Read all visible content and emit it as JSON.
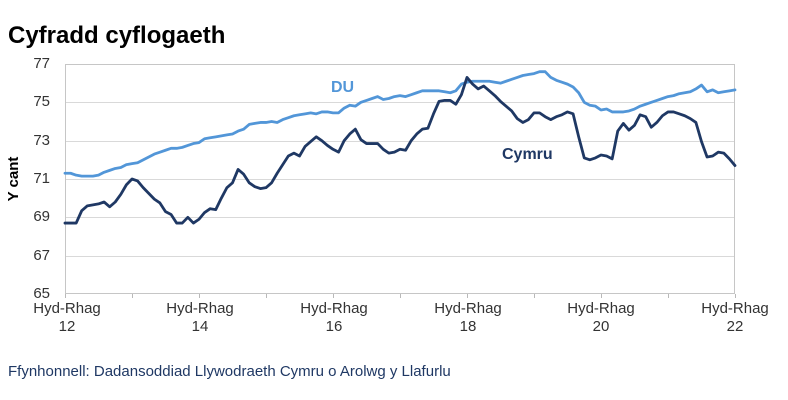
{
  "title": "Cyfradd cyflogaeth",
  "source": "Ffynhonnell: Dadansoddiad Llywodraeth Cymru o Arolwg y Llafurlu",
  "y_axis": {
    "title": "Y cant",
    "ticks": [
      "77",
      "75",
      "73",
      "71",
      "69",
      "67",
      "65"
    ]
  },
  "x_axis": {
    "labels": [
      {
        "line1": "Hyd-Rhag",
        "line2": "12"
      },
      {
        "line1": "Hyd-Rhag",
        "line2": "14"
      },
      {
        "line1": "Hyd-Rhag",
        "line2": "16"
      },
      {
        "line1": "Hyd-Rhag",
        "line2": "18"
      },
      {
        "line1": "Hyd-Rhag",
        "line2": "20"
      },
      {
        "line1": "Hyd-Rhag",
        "line2": "22"
      }
    ],
    "minor_tick_count": 11
  },
  "chart_data": {
    "type": "line",
    "title": "Cyfradd cyflogaeth",
    "ylabel": "Y cant",
    "ylim": [
      65,
      77
    ],
    "y_tick_step": 2,
    "grid": "horizontal",
    "x_description": "Rolling 3-month periods, monthly from Oct-Dec 2012 (Hyd-Rhag 12) to Oct-Dec 2022 (Hyd-Rhag 22), 121 points",
    "x_tick_labels": [
      "Hyd-Rhag 12",
      "Hyd-Rhag 14",
      "Hyd-Rhag 16",
      "Hyd-Rhag 18",
      "Hyd-Rhag 20",
      "Hyd-Rhag 22"
    ],
    "legend_position": "inline-labels",
    "series": [
      {
        "name": "DU",
        "color": "#5296d8",
        "values": [
          71.3,
          71.3,
          71.2,
          71.15,
          71.15,
          71.15,
          71.2,
          71.35,
          71.45,
          71.55,
          71.6,
          71.75,
          71.8,
          71.85,
          72.0,
          72.15,
          72.3,
          72.4,
          72.5,
          72.6,
          72.6,
          72.65,
          72.75,
          72.85,
          72.9,
          73.1,
          73.15,
          73.2,
          73.25,
          73.3,
          73.35,
          73.5,
          73.6,
          73.85,
          73.9,
          73.95,
          73.95,
          74.0,
          73.95,
          74.1,
          74.2,
          74.3,
          74.35,
          74.4,
          74.45,
          74.4,
          74.5,
          74.5,
          74.45,
          74.45,
          74.7,
          74.85,
          74.8,
          75.0,
          75.1,
          75.2,
          75.3,
          75.15,
          75.2,
          75.3,
          75.35,
          75.3,
          75.4,
          75.5,
          75.6,
          75.6,
          75.6,
          75.6,
          75.55,
          75.5,
          75.6,
          75.95,
          76.05,
          76.1,
          76.1,
          76.1,
          76.1,
          76.05,
          76.0,
          76.1,
          76.2,
          76.3,
          76.4,
          76.45,
          76.5,
          76.6,
          76.6,
          76.3,
          76.15,
          76.05,
          75.95,
          75.8,
          75.5,
          75.0,
          74.85,
          74.8,
          74.6,
          74.65,
          74.5,
          74.5,
          74.5,
          74.55,
          74.65,
          74.8,
          74.9,
          75.0,
          75.1,
          75.2,
          75.3,
          75.35,
          75.45,
          75.5,
          75.55,
          75.7,
          75.9,
          75.55,
          75.65,
          75.5,
          75.55,
          75.6,
          75.65
        ]
      },
      {
        "name": "Cymru",
        "color": "#1f3864",
        "values": [
          68.7,
          68.7,
          68.7,
          69.35,
          69.6,
          69.65,
          69.7,
          69.8,
          69.55,
          69.8,
          70.2,
          70.7,
          71.0,
          70.9,
          70.55,
          70.25,
          69.95,
          69.75,
          69.3,
          69.15,
          68.7,
          68.7,
          69.0,
          68.7,
          68.9,
          69.25,
          69.45,
          69.4,
          70.0,
          70.55,
          70.8,
          71.5,
          71.25,
          70.8,
          70.6,
          70.5,
          70.55,
          70.8,
          71.3,
          71.75,
          72.2,
          72.35,
          72.2,
          72.7,
          72.95,
          73.2,
          73.0,
          72.75,
          72.55,
          72.4,
          73.0,
          73.35,
          73.6,
          73.05,
          72.85,
          72.85,
          72.85,
          72.55,
          72.35,
          72.4,
          72.55,
          72.5,
          73.0,
          73.35,
          73.6,
          73.65,
          74.4,
          75.05,
          75.1,
          75.1,
          74.9,
          75.4,
          76.3,
          75.95,
          75.7,
          75.85,
          75.6,
          75.35,
          75.05,
          74.8,
          74.55,
          74.15,
          73.95,
          74.1,
          74.45,
          74.45,
          74.25,
          74.1,
          74.25,
          74.35,
          74.5,
          74.4,
          73.2,
          72.1,
          72.0,
          72.1,
          72.25,
          72.2,
          72.05,
          73.5,
          73.9,
          73.55,
          73.8,
          74.35,
          74.25,
          73.7,
          73.95,
          74.3,
          74.5,
          74.5,
          74.4,
          74.3,
          74.15,
          73.95,
          72.95,
          72.15,
          72.2,
          72.4,
          72.35,
          72.05,
          71.7
        ]
      }
    ]
  }
}
